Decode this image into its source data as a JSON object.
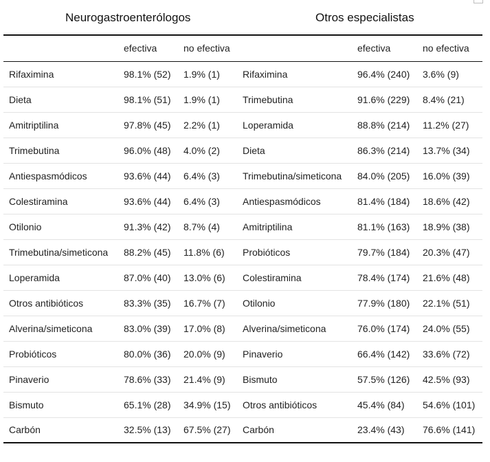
{
  "groups": {
    "left": "Neurogastroenterólogos",
    "right": "Otros especialistas"
  },
  "subheaders": {
    "effective": "efectiva",
    "not_effective": "no efectiva"
  },
  "rows": [
    {
      "left_treatment": "Rifaximina",
      "left_effective": "98.1% (52)",
      "left_not": "1.9% (1)",
      "right_treatment": "Rifaximina",
      "right_effective": "96.4% (240)",
      "right_not": "3.6% (9)"
    },
    {
      "left_treatment": "Dieta",
      "left_effective": "98.1% (51)",
      "left_not": "1.9% (1)",
      "right_treatment": "Trimebutina",
      "right_effective": "91.6% (229)",
      "right_not": "8.4% (21)"
    },
    {
      "left_treatment": "Amitriptilina",
      "left_effective": "97.8% (45)",
      "left_not": "2.2% (1)",
      "right_treatment": "Loperamida",
      "right_effective": "88.8% (214)",
      "right_not": "11.2% (27)"
    },
    {
      "left_treatment": "Trimebutina",
      "left_effective": "96.0% (48)",
      "left_not": "4.0% (2)",
      "right_treatment": "Dieta",
      "right_effective": "86.3% (214)",
      "right_not": "13.7% (34)"
    },
    {
      "left_treatment": "Antiespasmódicos",
      "left_effective": "93.6% (44)",
      "left_not": "6.4% (3)",
      "right_treatment": "Trimebutina/simeticona",
      "right_effective": "84.0% (205)",
      "right_not": "16.0% (39)"
    },
    {
      "left_treatment": "Colestiramina",
      "left_effective": "93.6% (44)",
      "left_not": "6.4% (3)",
      "right_treatment": "Antiespasmódicos",
      "right_effective": "81.4% (184)",
      "right_not": "18.6% (42)"
    },
    {
      "left_treatment": "Otilonio",
      "left_effective": "91.3% (42)",
      "left_not": "8.7% (4)",
      "right_treatment": "Amitriptilina",
      "right_effective": "81.1% (163)",
      "right_not": "18.9% (38)"
    },
    {
      "left_treatment": "Trimebutina/simeticona",
      "left_effective": "88.2% (45)",
      "left_not": "11.8% (6)",
      "right_treatment": "Probióticos",
      "right_effective": "79.7% (184)",
      "right_not": "20.3% (47)"
    },
    {
      "left_treatment": "Loperamida",
      "left_effective": "87.0% (40)",
      "left_not": "13.0% (6)",
      "right_treatment": "Colestiramina",
      "right_effective": "78.4% (174)",
      "right_not": "21.6% (48)"
    },
    {
      "left_treatment": "Otros antibióticos",
      "left_effective": "83.3% (35)",
      "left_not": "16.7% (7)",
      "right_treatment": "Otilonio",
      "right_effective": "77.9% (180)",
      "right_not": "22.1% (51)"
    },
    {
      "left_treatment": "Alverina/simeticona",
      "left_effective": "83.0% (39)",
      "left_not": "17.0% (8)",
      "right_treatment": "Alverina/simeticona",
      "right_effective": "76.0% (174)",
      "right_not": "24.0% (55)"
    },
    {
      "left_treatment": "Probióticos",
      "left_effective": "80.0% (36)",
      "left_not": "20.0% (9)",
      "right_treatment": "Pinaverio",
      "right_effective": "66.4% (142)",
      "right_not": "33.6% (72)"
    },
    {
      "left_treatment": "Pinaverio",
      "left_effective": "78.6% (33)",
      "left_not": "21.4% (9)",
      "right_treatment": "Bismuto",
      "right_effective": "57.5% (126)",
      "right_not": "42.5% (93)"
    },
    {
      "left_treatment": "Bismuto",
      "left_effective": "65.1% (28)",
      "left_not": "34.9% (15)",
      "right_treatment": "Otros antibióticos",
      "right_effective": "45.4% (84)",
      "right_not": "54.6% (101)"
    },
    {
      "left_treatment": "Carbón",
      "left_effective": "32.5% (13)",
      "left_not": "67.5% (27)",
      "right_treatment": "Carbón",
      "right_effective": "23.4% (43)",
      "right_not": "76.6% (141)"
    }
  ]
}
